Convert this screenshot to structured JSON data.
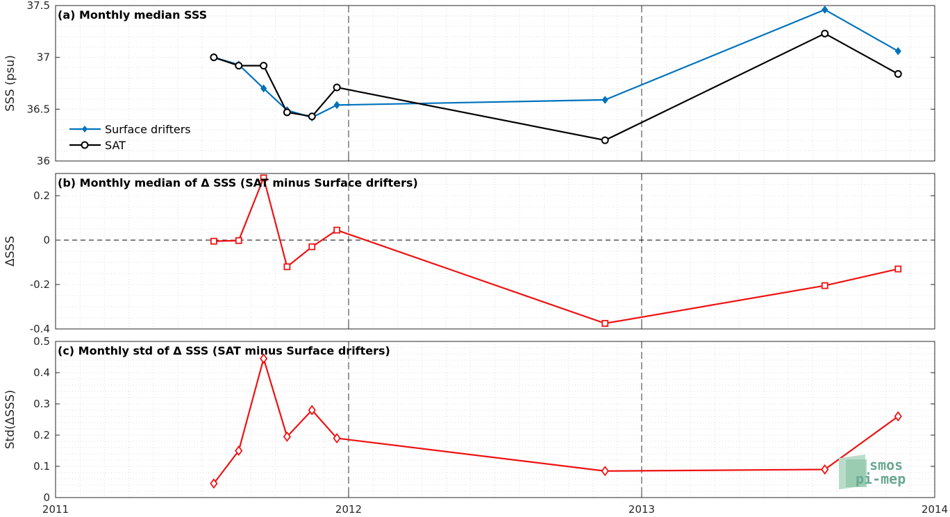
{
  "chart_data": [
    {
      "type": "line",
      "title": "(a) Monthly median SSS",
      "ylabel": "SSS (psu)",
      "xlim": [
        2011,
        2014
      ],
      "ylim": [
        36,
        37.5
      ],
      "yticks": [
        "36",
        "36.5",
        "37",
        "37.5"
      ],
      "grid": "minor dotted",
      "legend_position": "lower-left",
      "series": [
        {
          "name": "Surface drifters",
          "color": "#0072BD",
          "marker": "diamond",
          "x": [
            2011.54,
            2011.625,
            2011.71,
            2011.79,
            2011.875,
            2011.96,
            2012.875,
            2013.625,
            2013.875
          ],
          "y": [
            37.0,
            36.93,
            36.7,
            36.49,
            36.42,
            36.54,
            36.59,
            37.46,
            37.06
          ]
        },
        {
          "name": "SAT",
          "color": "#000000",
          "marker": "circle",
          "x": [
            2011.54,
            2011.625,
            2011.71,
            2011.79,
            2011.875,
            2011.96,
            2012.875,
            2013.625,
            2013.875
          ],
          "y": [
            37.0,
            36.92,
            36.92,
            36.47,
            36.43,
            36.71,
            36.2,
            37.23,
            36.84
          ]
        }
      ]
    },
    {
      "type": "line",
      "title": "(b) Monthly median of Δ SSS (SAT minus Surface drifters)",
      "ylabel": "ΔSSS",
      "xlim": [
        2011,
        2014
      ],
      "ylim": [
        -0.4,
        0.3
      ],
      "yticks": [
        "-0.4",
        "-0.2",
        "0",
        "0.2"
      ],
      "zero_line": true,
      "grid": "minor dotted",
      "series": [
        {
          "color": "#EE1111",
          "marker": "square",
          "x": [
            2011.54,
            2011.625,
            2011.71,
            2011.79,
            2011.875,
            2011.96,
            2012.875,
            2013.625,
            2013.875
          ],
          "y": [
            -0.005,
            -0.002,
            0.28,
            -0.12,
            -0.03,
            0.045,
            -0.375,
            -0.205,
            -0.13
          ]
        }
      ]
    },
    {
      "type": "line",
      "title": "(c) Monthly std of Δ SSS (SAT minus Surface drifters)",
      "ylabel": "Std(ΔSSS)",
      "xlabel": "",
      "xlim": [
        2011,
        2014
      ],
      "ylim": [
        0,
        0.5
      ],
      "yticks": [
        "0",
        "0.1",
        "0.2",
        "0.3",
        "0.4",
        "0.5"
      ],
      "xticks": [
        "2011",
        "2012",
        "2013",
        "2014"
      ],
      "grid": "minor dotted",
      "series": [
        {
          "color": "#EE1111",
          "marker": "diamond",
          "x": [
            2011.54,
            2011.625,
            2011.71,
            2011.79,
            2011.875,
            2011.96,
            2012.875,
            2013.625,
            2013.875
          ],
          "y": [
            0.045,
            0.15,
            0.445,
            0.195,
            0.28,
            0.19,
            0.085,
            0.09,
            0.26
          ]
        }
      ]
    }
  ],
  "logo": {
    "line1": "smos",
    "line2": "pi-mep"
  }
}
